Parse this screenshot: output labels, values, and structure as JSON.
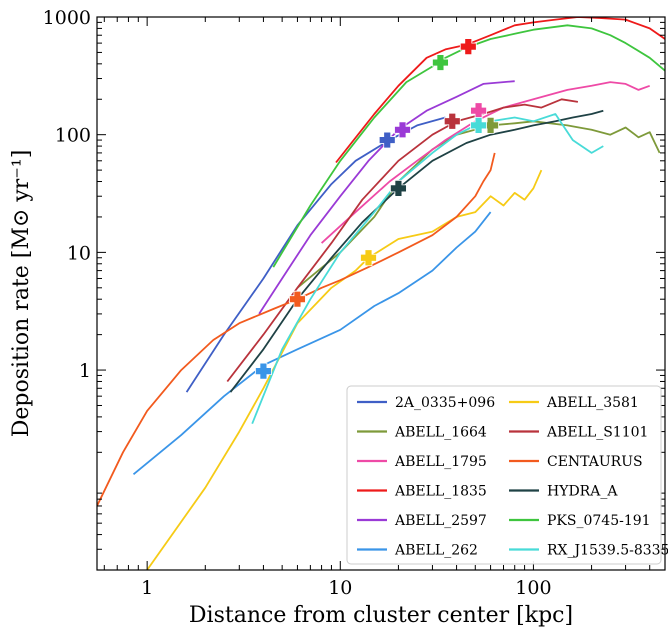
{
  "chart_data": {
    "type": "line",
    "xlabel": "Distance from cluster center [kpc]",
    "ylabel": "Deposition rate [M⊙ yr⁻¹]",
    "xscale": "log",
    "yscale": "log",
    "xlim": [
      0.55,
      480
    ],
    "ylim": [
      0.02,
      1000
    ],
    "x_ticks": [
      {
        "value": 1,
        "label": "1"
      },
      {
        "value": 10,
        "label": "10"
      },
      {
        "value": 100,
        "label": "100"
      }
    ],
    "y_ticks": [
      {
        "value": 1,
        "label": "1"
      },
      {
        "value": 10,
        "label": "10"
      },
      {
        "value": 100,
        "label": "100"
      },
      {
        "value": 1000,
        "label": "1000"
      }
    ],
    "legend_position": "bottom-right",
    "legend_columns": 2,
    "series": [
      {
        "name": "2A_0335+096",
        "color": "#3f5fc6",
        "x": [
          1.6,
          2.5,
          4,
          6,
          9,
          12,
          18,
          25,
          35
        ],
        "y": [
          0.65,
          2,
          6,
          17,
          38,
          60,
          90,
          120,
          140
        ],
        "marker": {
          "x": 17.5,
          "y": 90
        }
      },
      {
        "name": "ABELL_1664",
        "color": "#7e9a3a",
        "x": [
          6,
          10,
          15,
          20,
          30,
          40,
          60,
          80,
          100,
          150,
          200,
          250,
          300,
          350,
          400,
          450
        ],
        "y": [
          5,
          10,
          20,
          40,
          75,
          100,
          120,
          125,
          130,
          120,
          110,
          100,
          115,
          95,
          105,
          70
        ],
        "marker": {
          "x": 60,
          "y": 120
        }
      },
      {
        "name": "ABELL_1795",
        "color": "#ee4aa6",
        "x": [
          8,
          12,
          18,
          25,
          35,
          50,
          70,
          100,
          150,
          200,
          250,
          300,
          350,
          400
        ],
        "y": [
          12,
          22,
          40,
          60,
          90,
          130,
          170,
          200,
          240,
          260,
          280,
          270,
          240,
          260
        ],
        "marker": {
          "x": 52,
          "y": 160
        }
      },
      {
        "name": "ABELL_1835",
        "color": "#ee1a1a",
        "x": [
          9.5,
          15,
          20,
          28,
          35,
          45,
          60,
          80,
          100,
          130,
          170,
          220,
          300,
          400,
          480
        ],
        "y": [
          58,
          150,
          260,
          450,
          530,
          580,
          700,
          850,
          900,
          950,
          1000,
          980,
          950,
          800,
          650
        ],
        "marker": {
          "x": 46,
          "y": 560
        }
      },
      {
        "name": "ABELL_2597",
        "color": "#9a3ad6",
        "x": [
          3.8,
          5,
          7,
          10,
          14,
          20,
          28,
          40,
          55,
          70,
          80
        ],
        "y": [
          3,
          6,
          14,
          30,
          60,
          110,
          160,
          210,
          270,
          280,
          285
        ],
        "marker": {
          "x": 21,
          "y": 110
        }
      },
      {
        "name": "ABELL_262",
        "color": "#3a95e8",
        "x": [
          0.85,
          1.5,
          2.5,
          4,
          6,
          10,
          15,
          20,
          30,
          40,
          50,
          60
        ],
        "y": [
          0.13,
          0.28,
          0.6,
          1.1,
          1.5,
          2.2,
          3.5,
          4.5,
          7,
          11,
          15,
          22
        ],
        "marker": {
          "x": 4,
          "y": 0.98
        }
      },
      {
        "name": "ABELL_3581",
        "color": "#f6cb16",
        "x": [
          1.0,
          2,
          3,
          4,
          6,
          9,
          12,
          14,
          20,
          30,
          40,
          50,
          60,
          70,
          80,
          90,
          100,
          110
        ],
        "y": [
          0.02,
          0.1,
          0.3,
          0.7,
          2.5,
          5,
          7,
          9,
          13,
          15,
          20,
          22,
          30,
          25,
          32,
          28,
          35,
          50
        ],
        "marker": {
          "x": 14,
          "y": 9
        }
      },
      {
        "name": "ABELL_S1101",
        "color": "#b9333c",
        "x": [
          2.6,
          4,
          6,
          9,
          13,
          20,
          30,
          40,
          55,
          70,
          90,
          110,
          140,
          170
        ],
        "y": [
          0.8,
          2,
          5,
          12,
          28,
          60,
          100,
          130,
          150,
          170,
          180,
          170,
          200,
          190
        ],
        "marker": {
          "x": 38,
          "y": 130
        }
      },
      {
        "name": "CENTAURUS",
        "color": "#f25a1e",
        "x": [
          0.55,
          0.75,
          1.0,
          1.5,
          2.2,
          3,
          4.5,
          6,
          8,
          10,
          14,
          20,
          30,
          40,
          50,
          55,
          60,
          63
        ],
        "y": [
          0.07,
          0.2,
          0.45,
          1.0,
          1.8,
          2.5,
          3.3,
          4,
          5,
          5.8,
          7.5,
          10,
          14,
          20,
          30,
          40,
          50,
          70
        ],
        "marker": {
          "x": 6,
          "y": 4
        }
      },
      {
        "name": "HYDRA_A",
        "color": "#1f4245",
        "x": [
          2.7,
          4,
          6,
          9,
          13,
          20,
          30,
          45,
          60,
          80,
          100,
          130,
          160,
          200,
          230
        ],
        "y": [
          0.65,
          1.5,
          4,
          9,
          18,
          35,
          60,
          85,
          100,
          110,
          120,
          130,
          140,
          150,
          160
        ],
        "marker": {
          "x": 20,
          "y": 35
        }
      },
      {
        "name": "PKS_0745-191",
        "color": "#3ec53e",
        "x": [
          4.5,
          7,
          10,
          15,
          22,
          30,
          35,
          45,
          60,
          80,
          100,
          150,
          200,
          250,
          300,
          400,
          480
        ],
        "y": [
          7.5,
          25,
          60,
          140,
          280,
          380,
          450,
          550,
          650,
          720,
          780,
          850,
          800,
          700,
          600,
          450,
          350
        ],
        "marker": {
          "x": 33,
          "y": 410
        }
      },
      {
        "name": "RX_J1539.5-8335",
        "color": "#48dbd8",
        "x": [
          3.5,
          5,
          7,
          10,
          15,
          20,
          30,
          40,
          50,
          60,
          80,
          100,
          130,
          160,
          200,
          230
        ],
        "y": [
          0.35,
          1.5,
          4,
          10,
          22,
          40,
          70,
          100,
          120,
          130,
          140,
          130,
          150,
          90,
          70,
          80
        ],
        "marker": {
          "x": 52,
          "y": 120
        }
      }
    ]
  }
}
